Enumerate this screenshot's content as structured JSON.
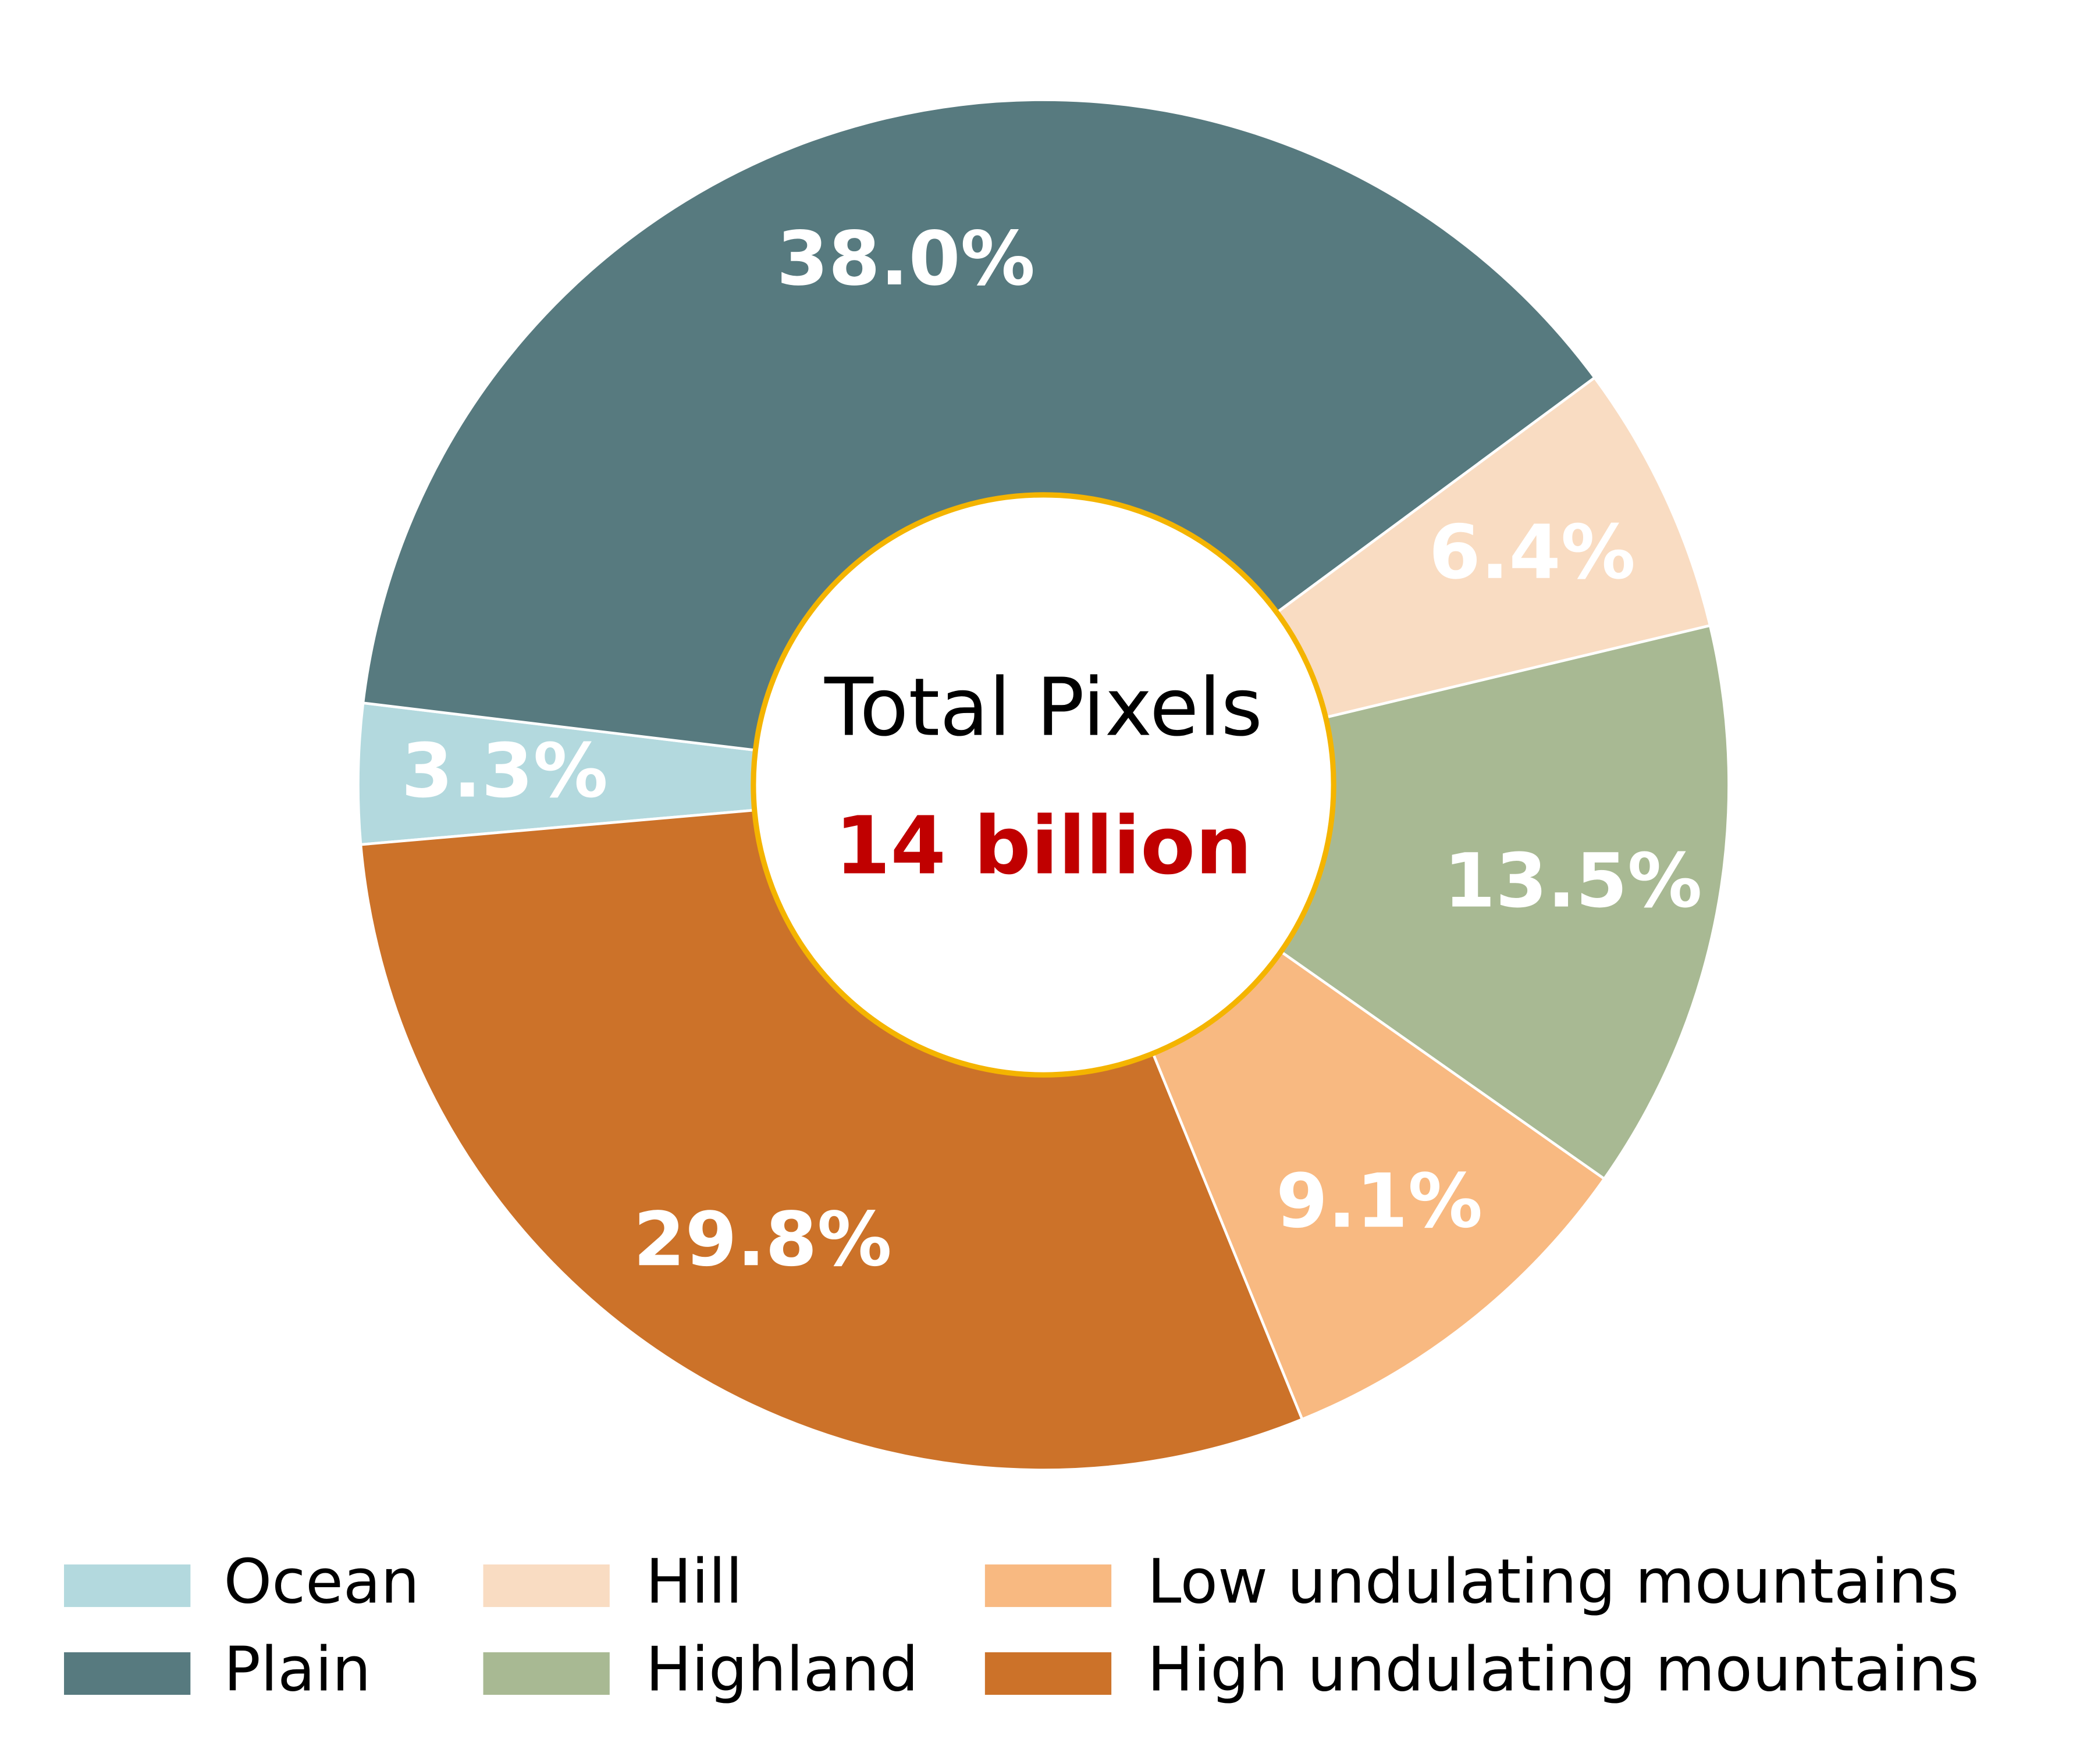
{
  "chart_data": {
    "type": "donut",
    "center_title": "Total Pixels",
    "center_value": "14 billion",
    "categories": [
      "Ocean",
      "Plain",
      "Hill",
      "Highland",
      "Low undulating mountains",
      "High undulating mountains"
    ],
    "values": [
      3.3,
      38.0,
      6.4,
      13.5,
      9.1,
      29.8
    ],
    "value_labels": [
      "3.3%",
      "38.0%",
      "6.4%",
      "13.5%",
      "9.1%",
      "29.8%"
    ],
    "colors": [
      "#b3d9de",
      "#577a7f",
      "#f9dcc2",
      "#a8b993",
      "#f8b981",
      "#cc7229"
    ]
  }
}
